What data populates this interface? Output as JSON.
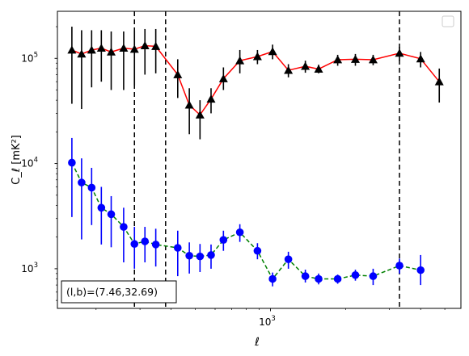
{
  "chart_data": {
    "type": "scatter",
    "title": "",
    "xlabel": "ℓ",
    "ylabel": "C_ℓ [mK²]",
    "xscale": "log",
    "yscale": "log",
    "xlim": [
      140,
      5800
    ],
    "ylim": [
      420,
      280000
    ],
    "x_tick_labels": [
      {
        "value": 1000,
        "base": "10",
        "exp": "3"
      }
    ],
    "y_tick_labels": [
      {
        "value": 1000,
        "base": "10",
        "exp": "3"
      },
      {
        "value": 10000,
        "base": "10",
        "exp": "4"
      },
      {
        "value": 100000,
        "base": "10",
        "exp": "5"
      }
    ],
    "annotation": "(l,b)=(7.46,32.69)",
    "legend": {
      "placement": "upper right",
      "entries": []
    },
    "vertical_lines": [
      {
        "x": 285,
        "style": "dashed"
      },
      {
        "x": 380,
        "style": "dashed"
      },
      {
        "x": 3290,
        "style": "dashed"
      }
    ],
    "series": [
      {
        "marker": "triangle",
        "marker_color": "#000000",
        "line_color": "#ff0000",
        "line_style": "solid",
        "points": [
          {
            "x": 160,
            "y": 120000,
            "lo": 37000,
            "hi": 200000
          },
          {
            "x": 175,
            "y": 110000,
            "lo": 33000,
            "hi": 185000
          },
          {
            "x": 192,
            "y": 120000,
            "lo": 53000,
            "hi": 185000
          },
          {
            "x": 210,
            "y": 125000,
            "lo": 60000,
            "hi": 185000
          },
          {
            "x": 230,
            "y": 115000,
            "lo": 50000,
            "hi": 180000
          },
          {
            "x": 258,
            "y": 125000,
            "lo": 50000,
            "hi": 180000
          },
          {
            "x": 285,
            "y": 122000,
            "lo": 55000,
            "hi": 185000
          },
          {
            "x": 314,
            "y": 132000,
            "lo": 70000,
            "hi": 190000
          },
          {
            "x": 347,
            "y": 130000,
            "lo": 72000,
            "hi": 190000
          },
          {
            "x": 425,
            "y": 70000,
            "lo": 42000,
            "hi": 98000
          },
          {
            "x": 473,
            "y": 36000,
            "lo": 19000,
            "hi": 52000
          },
          {
            "x": 522,
            "y": 29000,
            "lo": 17000,
            "hi": 40000
          },
          {
            "x": 578,
            "y": 41000,
            "lo": 30000,
            "hi": 52000
          },
          {
            "x": 648,
            "y": 64000,
            "lo": 50000,
            "hi": 82000
          },
          {
            "x": 754,
            "y": 95000,
            "lo": 72000,
            "hi": 120000
          },
          {
            "x": 887,
            "y": 104000,
            "lo": 88000,
            "hi": 120000
          },
          {
            "x": 1020,
            "y": 116000,
            "lo": 98000,
            "hi": 135000
          },
          {
            "x": 1180,
            "y": 77000,
            "lo": 66000,
            "hi": 88000
          },
          {
            "x": 1380,
            "y": 84000,
            "lo": 73000,
            "hi": 95000
          },
          {
            "x": 1560,
            "y": 79000,
            "lo": 72000,
            "hi": 87000
          },
          {
            "x": 1860,
            "y": 97000,
            "lo": 85000,
            "hi": 108000
          },
          {
            "x": 2190,
            "y": 98000,
            "lo": 85000,
            "hi": 110000
          },
          {
            "x": 2580,
            "y": 97000,
            "lo": 86000,
            "hi": 108000
          },
          {
            "x": 3290,
            "y": 112000,
            "lo": 95000,
            "hi": 128000
          },
          {
            "x": 4000,
            "y": 99000,
            "lo": 82000,
            "hi": 115000
          },
          {
            "x": 4750,
            "y": 60000,
            "lo": 38000,
            "hi": 80000
          }
        ]
      },
      {
        "marker": "circle",
        "marker_color": "#0000ff",
        "line_color": "#008000",
        "line_style": "dashed",
        "points": [
          {
            "x": 160,
            "y": 10200,
            "lo": 3100,
            "hi": 17500
          },
          {
            "x": 175,
            "y": 6600,
            "lo": 1900,
            "hi": 11200
          },
          {
            "x": 192,
            "y": 5900,
            "lo": 2600,
            "hi": 9100
          },
          {
            "x": 210,
            "y": 3800,
            "lo": 1700,
            "hi": 6000
          },
          {
            "x": 230,
            "y": 3300,
            "lo": 1600,
            "hi": 4900
          },
          {
            "x": 258,
            "y": 2500,
            "lo": 1150,
            "hi": 3800
          },
          {
            "x": 285,
            "y": 1720,
            "lo": 1000,
            "hi": 2500
          },
          {
            "x": 314,
            "y": 1820,
            "lo": 1150,
            "hi": 2500
          },
          {
            "x": 347,
            "y": 1700,
            "lo": 1050,
            "hi": 2400
          },
          {
            "x": 425,
            "y": 1580,
            "lo": 850,
            "hi": 2300
          },
          {
            "x": 473,
            "y": 1330,
            "lo": 900,
            "hi": 1780
          },
          {
            "x": 522,
            "y": 1310,
            "lo": 930,
            "hi": 1720
          },
          {
            "x": 578,
            "y": 1350,
            "lo": 1000,
            "hi": 1700
          },
          {
            "x": 648,
            "y": 1880,
            "lo": 1480,
            "hi": 2300
          },
          {
            "x": 754,
            "y": 2220,
            "lo": 1800,
            "hi": 2650
          },
          {
            "x": 887,
            "y": 1480,
            "lo": 1230,
            "hi": 1750
          },
          {
            "x": 1020,
            "y": 800,
            "lo": 680,
            "hi": 920
          },
          {
            "x": 1180,
            "y": 1230,
            "lo": 1000,
            "hi": 1450
          },
          {
            "x": 1380,
            "y": 850,
            "lo": 740,
            "hi": 980
          },
          {
            "x": 1560,
            "y": 800,
            "lo": 710,
            "hi": 900
          },
          {
            "x": 1860,
            "y": 800,
            "lo": 720,
            "hi": 880
          },
          {
            "x": 2190,
            "y": 870,
            "lo": 770,
            "hi": 980
          },
          {
            "x": 2580,
            "y": 850,
            "lo": 700,
            "hi": 1000
          },
          {
            "x": 3290,
            "y": 1070,
            "lo": 900,
            "hi": 1250
          },
          {
            "x": 4000,
            "y": 970,
            "lo": 700,
            "hi": 1350
          }
        ]
      }
    ]
  }
}
